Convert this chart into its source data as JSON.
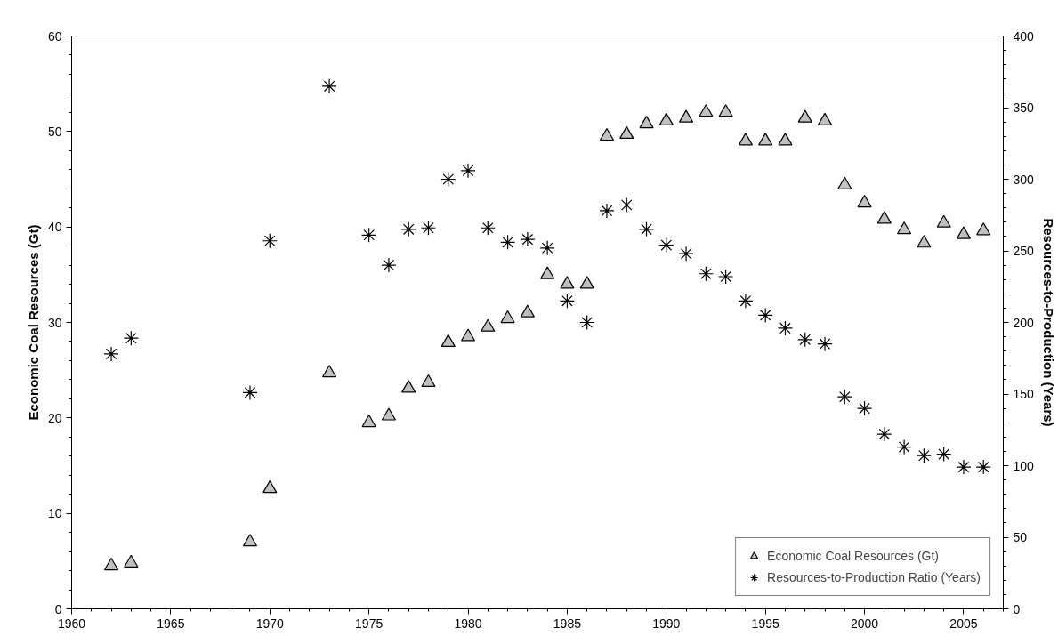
{
  "chart_data": {
    "type": "scatter",
    "ylabel": "Economic Coal Resources (Gt)",
    "y2label": "Resources-to-Production (Years)",
    "x": [
      1962,
      1963,
      1969,
      1970,
      1973,
      1975,
      1976,
      1977,
      1978,
      1979,
      1980,
      1981,
      1982,
      1983,
      1984,
      1985,
      1986,
      1987,
      1988,
      1989,
      1990,
      1991,
      1992,
      1993,
      1994,
      1995,
      1996,
      1997,
      1998,
      1999,
      2000,
      2001,
      2002,
      2003,
      2004,
      2005,
      2006
    ],
    "series": [
      {
        "name": "Economic Coal Resources (Gt)",
        "color": "#c0c0c0",
        "marker": "triangle",
        "values": [
          4.5,
          4.8,
          7,
          12.6,
          24.7,
          19.5,
          20.2,
          23.1,
          23.7,
          27.9,
          28.5,
          29.5,
          30.4,
          31,
          35,
          34,
          34,
          49.5,
          49.7,
          50.8,
          51.1,
          51.4,
          52,
          52,
          49,
          49,
          49,
          51.4,
          51.1,
          44.4,
          42.5,
          40.8,
          39.7,
          38.3,
          40.4,
          39.2,
          39.6
        ]
      },
      {
        "name": "Resources-to-Production Ratio (Years)",
        "color": "#000000",
        "marker": "cross",
        "axis": "y2",
        "values": [
          178,
          189,
          151,
          257,
          365,
          261,
          240,
          265,
          266,
          300,
          306,
          266,
          256,
          258,
          252,
          215,
          200,
          278,
          282,
          265,
          254,
          248,
          234,
          232,
          215,
          205,
          196,
          188,
          185,
          148,
          140,
          122,
          113,
          107,
          108,
          99,
          99
        ]
      }
    ],
    "xlim": [
      1960,
      2007
    ],
    "xticks": [
      1960,
      1965,
      1970,
      1975,
      1980,
      1985,
      1990,
      1995,
      2000,
      2005
    ],
    "ylim": [
      0,
      60
    ],
    "yticks": [
      0,
      10,
      20,
      30,
      40,
      50,
      60
    ],
    "y2lim": [
      0,
      400
    ],
    "y2ticks": [
      0,
      50,
      100,
      150,
      200,
      250,
      300,
      350,
      400
    ],
    "grid": false,
    "legend": "bottom right"
  }
}
